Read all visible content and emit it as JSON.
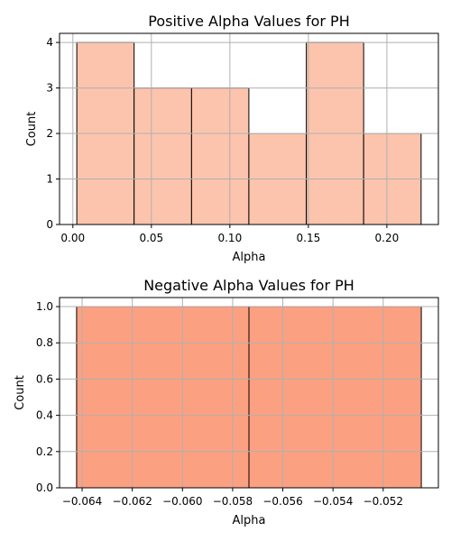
{
  "chart_data": [
    {
      "type": "bar",
      "title": "Positive Alpha Values for PH",
      "xlabel": "Alpha",
      "ylabel": "Count",
      "bin_edges": [
        0.0025,
        0.039,
        0.0756,
        0.1121,
        0.1487,
        0.1852,
        0.2218
      ],
      "values": [
        4,
        3,
        3,
        2,
        4,
        2
      ],
      "xlim": [
        -0.0085,
        0.2328
      ],
      "ylim": [
        0,
        4.2
      ],
      "xticks": [
        0.0,
        0.05,
        0.1,
        0.15,
        0.2
      ],
      "xtick_labels": [
        "0.00",
        "0.05",
        "0.10",
        "0.15",
        "0.20"
      ],
      "yticks": [
        0,
        1,
        2,
        3,
        4
      ],
      "ytick_labels": [
        "0",
        "1",
        "2",
        "3",
        "4"
      ],
      "grid": true,
      "bar_color": "#fcc4ad",
      "edge_color": "#000000"
    },
    {
      "type": "bar",
      "title": "Negative Alpha Values for PH",
      "xlabel": "Alpha",
      "ylabel": "Count",
      "bin_edges": [
        -0.06422,
        -0.05735,
        -0.05048
      ],
      "values": [
        1,
        1
      ],
      "xlim": [
        -0.0649,
        -0.0498
      ],
      "ylim": [
        0,
        1.05
      ],
      "xticks": [
        -0.064,
        -0.062,
        -0.06,
        -0.058,
        -0.056,
        -0.054,
        -0.052
      ],
      "xtick_labels": [
        "−0.064",
        "−0.062",
        "−0.060",
        "−0.058",
        "−0.056",
        "−0.054",
        "−0.052"
      ],
      "yticks": [
        0,
        0.2,
        0.4,
        0.6,
        0.8,
        1.0
      ],
      "ytick_labels": [
        "0.0",
        "0.2",
        "0.4",
        "0.6",
        "0.8",
        "1.0"
      ],
      "grid": true,
      "bar_color": "#fca082",
      "edge_color": "#000000"
    }
  ]
}
